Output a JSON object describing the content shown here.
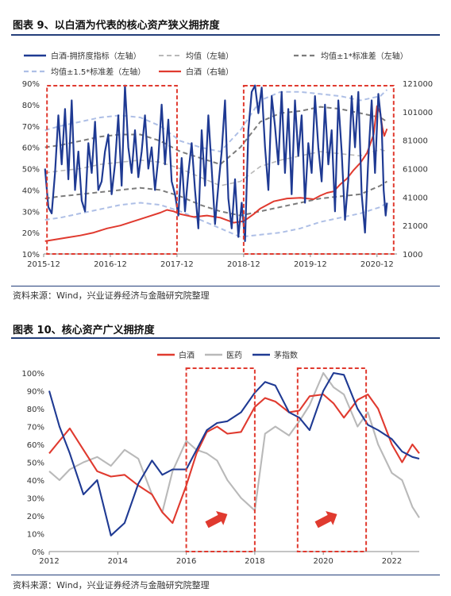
{
  "figure9": {
    "title": "图表 9、以白酒为代表的核心资产狭义拥挤度",
    "source": "资料来源：Wind，兴业证券经济与金融研究院整理"
  },
  "figure10": {
    "title": "图表 10、核心资产广义拥挤度",
    "source": "资料来源：Wind，兴业证券经济与金融研究院整理"
  },
  "colors": {
    "navy": "#1f3a93",
    "red": "#e03a2f",
    "lightBlue": "#aebfe6",
    "lightGray": "#b9b9b9",
    "darkGray": "#7c7c7c",
    "highlight": "#e03a2f",
    "arrow": "#e03a2f",
    "rule": "#243f7a"
  },
  "chart_data": [
    {
      "type": "line",
      "legend": [
        "白酒-拥挤度指标（左轴）",
        "均值（左轴）",
        "均值±1*标准差（左轴）",
        "均值±1.5*标准差（左轴）",
        "白酒（右轴）"
      ],
      "legend_position": "top",
      "x_ticks": [
        "2015-12",
        "2016-12",
        "2017-12",
        "2018-12",
        "2019-12",
        "2020-12"
      ],
      "x_range": [
        2015.95,
        2021.25
      ],
      "y_left": {
        "ticks": [
          "10%",
          "20%",
          "30%",
          "40%",
          "50%",
          "60%",
          "70%",
          "80%",
          "90%"
        ],
        "range": [
          10,
          90
        ]
      },
      "y_right": {
        "ticks": [
          "1000",
          "21000",
          "41000",
          "61000",
          "81000",
          "101000",
          "121000"
        ],
        "range": [
          1000,
          121000
        ]
      },
      "highlight_ranges": [
        [
          2016.0,
          2017.95
        ],
        [
          2018.95,
          2021.2
        ]
      ],
      "series": [
        {
          "name": "白酒-拥挤度指标（左轴）",
          "axis": "left",
          "style": "solid-navy",
          "x": [
            2015.97,
            2016.02,
            2016.07,
            2016.12,
            2016.17,
            2016.22,
            2016.27,
            2016.32,
            2016.37,
            2016.42,
            2016.47,
            2016.52,
            2016.57,
            2016.62,
            2016.67,
            2016.72,
            2016.77,
            2016.82,
            2016.87,
            2016.92,
            2016.97,
            2017.02,
            2017.07,
            2017.12,
            2017.17,
            2017.22,
            2017.27,
            2017.32,
            2017.37,
            2017.42,
            2017.47,
            2017.52,
            2017.57,
            2017.62,
            2017.67,
            2017.72,
            2017.77,
            2017.82,
            2017.87,
            2017.92,
            2017.97,
            2018.02,
            2018.07,
            2018.12,
            2018.17,
            2018.22,
            2018.27,
            2018.32,
            2018.37,
            2018.42,
            2018.47,
            2018.52,
            2018.57,
            2018.62,
            2018.67,
            2018.72,
            2018.77,
            2018.82,
            2018.87,
            2018.92,
            2018.97,
            2019.02,
            2019.07,
            2019.12,
            2019.17,
            2019.22,
            2019.27,
            2019.32,
            2019.37,
            2019.42,
            2019.47,
            2019.52,
            2019.57,
            2019.62,
            2019.67,
            2019.72,
            2019.77,
            2019.82,
            2019.87,
            2019.92,
            2019.97,
            2020.02,
            2020.07,
            2020.12,
            2020.17,
            2020.22,
            2020.27,
            2020.32,
            2020.37,
            2020.42,
            2020.47,
            2020.52,
            2020.57,
            2020.62,
            2020.67,
            2020.72,
            2020.77,
            2020.82,
            2020.87,
            2020.92,
            2020.97,
            2021.02,
            2021.05,
            2021.08,
            2021.1
          ],
          "values": [
            50,
            32,
            29,
            48,
            75,
            52,
            78,
            45,
            82,
            40,
            58,
            35,
            30,
            62,
            48,
            72,
            40,
            44,
            58,
            66,
            38,
            52,
            75,
            42,
            89,
            60,
            48,
            68,
            46,
            58,
            75,
            50,
            60,
            40,
            55,
            80,
            52,
            73,
            44,
            38,
            28,
            55,
            30,
            48,
            62,
            40,
            22,
            68,
            42,
            75,
            50,
            24,
            42,
            58,
            82,
            36,
            22,
            45,
            18,
            34,
            16,
            68,
            86,
            89,
            76,
            88,
            60,
            40,
            84,
            70,
            52,
            86,
            48,
            78,
            38,
            82,
            56,
            75,
            34,
            62,
            48,
            84,
            60,
            44,
            80,
            52,
            68,
            30,
            82,
            58,
            26,
            45,
            84,
            60,
            86,
            38,
            20,
            55,
            82,
            48,
            85,
            70,
            40,
            28,
            34
          ]
        },
        {
          "name": "均值（左轴）",
          "axis": "left",
          "style": "dashed-light-gray",
          "x": [
            2015.97,
            2016.2,
            2016.5,
            2016.8,
            2017.1,
            2017.4,
            2017.7,
            2018.0,
            2018.3,
            2018.6,
            2018.9,
            2019.2,
            2019.5,
            2019.8,
            2020.1,
            2020.4,
            2020.7,
            2021.0,
            2021.1
          ],
          "values": [
            48,
            49,
            50,
            52,
            53,
            54,
            53,
            50,
            46,
            42,
            44,
            51,
            54,
            56,
            58,
            57,
            56,
            59,
            58
          ]
        },
        {
          "name": "均值+1*标准差（左轴）",
          "axis": "left",
          "style": "dashed-dark-gray",
          "x": [
            2015.97,
            2016.2,
            2016.5,
            2016.8,
            2017.1,
            2017.4,
            2017.7,
            2018.0,
            2018.3,
            2018.6,
            2018.9,
            2019.2,
            2019.5,
            2019.8,
            2020.1,
            2020.4,
            2020.7,
            2021.0,
            2021.1
          ],
          "values": [
            60,
            61,
            63,
            65,
            66,
            66,
            63,
            58,
            55,
            52,
            60,
            72,
            76,
            77,
            79,
            78,
            76,
            74,
            72
          ]
        },
        {
          "name": "均值-1*标准差（左轴）",
          "axis": "left",
          "style": "dashed-dark-gray",
          "x": [
            2015.97,
            2016.2,
            2016.5,
            2016.8,
            2017.1,
            2017.4,
            2017.7,
            2018.0,
            2018.3,
            2018.6,
            2018.9,
            2019.2,
            2019.5,
            2019.8,
            2020.1,
            2020.4,
            2020.7,
            2021.0,
            2021.1
          ],
          "values": [
            36,
            37,
            38,
            39,
            40,
            41,
            40,
            37,
            33,
            30,
            28,
            30,
            32,
            34,
            36,
            37,
            38,
            42,
            44
          ]
        },
        {
          "name": "均值+1.5*标准差（左轴）",
          "axis": "left",
          "style": "dashed-light-blue",
          "x": [
            2015.97,
            2016.2,
            2016.5,
            2016.8,
            2017.1,
            2017.4,
            2017.7,
            2018.0,
            2018.3,
            2018.6,
            2018.9,
            2019.2,
            2019.5,
            2019.8,
            2020.1,
            2020.4,
            2020.7,
            2021.0,
            2021.1
          ],
          "values": [
            68,
            70,
            72,
            74,
            75,
            74,
            70,
            63,
            60,
            58,
            68,
            82,
            86,
            86,
            85,
            84,
            82,
            84,
            87
          ]
        },
        {
          "name": "均值-1.5*标准差（左轴）",
          "axis": "left",
          "style": "dashed-light-blue",
          "x": [
            2015.97,
            2016.2,
            2016.5,
            2016.8,
            2017.1,
            2017.4,
            2017.7,
            2018.0,
            2018.3,
            2018.6,
            2018.9,
            2019.2,
            2019.5,
            2019.8,
            2020.1,
            2020.4,
            2020.7,
            2021.0,
            2021.1
          ],
          "values": [
            26,
            27,
            29,
            31,
            33,
            34,
            33,
            30,
            26,
            22,
            18,
            19,
            20,
            22,
            25,
            27,
            29,
            32,
            34
          ]
        },
        {
          "name": "白酒（右轴）",
          "axis": "right",
          "style": "solid-red",
          "x": [
            2015.97,
            2016.1,
            2016.3,
            2016.5,
            2016.7,
            2016.9,
            2017.1,
            2017.3,
            2017.5,
            2017.7,
            2017.8,
            2017.9,
            2018.0,
            2018.2,
            2018.4,
            2018.6,
            2018.8,
            2018.95,
            2019.1,
            2019.2,
            2019.4,
            2019.6,
            2019.8,
            2020.0,
            2020.1,
            2020.2,
            2020.3,
            2020.4,
            2020.5,
            2020.6,
            2020.7,
            2020.8,
            2020.9,
            2020.95,
            2021.0,
            2021.03,
            2021.06,
            2021.1
          ],
          "values": [
            10000,
            11000,
            12500,
            14000,
            16000,
            19000,
            21000,
            24000,
            27000,
            30000,
            32000,
            31000,
            29000,
            27000,
            28000,
            26500,
            23000,
            24000,
            29000,
            33000,
            38000,
            40000,
            40500,
            39500,
            42000,
            44000,
            45000,
            50000,
            54000,
            60000,
            65000,
            72000,
            85000,
            105000,
            100000,
            90000,
            84000,
            89000
          ]
        }
      ]
    },
    {
      "type": "line",
      "legend": [
        "白酒",
        "医药",
        "茅指数"
      ],
      "legend_position": "top",
      "x_ticks": [
        "2012",
        "2014",
        "2016",
        "2018",
        "2020",
        "2022"
      ],
      "x_range": [
        2012,
        2022.8
      ],
      "y_ticks": [
        "0%",
        "10%",
        "20%",
        "30%",
        "40%",
        "50%",
        "60%",
        "70%",
        "80%",
        "90%",
        "100%"
      ],
      "y_range": [
        0,
        100
      ],
      "highlight_ranges": [
        [
          2016.0,
          2018.0
        ],
        [
          2019.25,
          2021.25
        ]
      ],
      "arrows": [
        {
          "from": [
            2016.6,
            15
          ],
          "to": [
            2017.2,
            21
          ]
        },
        {
          "from": [
            2019.8,
            15
          ],
          "to": [
            2020.4,
            21
          ]
        }
      ],
      "series": [
        {
          "name": "白酒",
          "style": "solid-red",
          "x": [
            2012.0,
            2012.3,
            2012.6,
            2013.0,
            2013.4,
            2013.8,
            2014.2,
            2014.6,
            2015.0,
            2015.3,
            2015.6,
            2016.0,
            2016.3,
            2016.6,
            2016.9,
            2017.2,
            2017.6,
            2018.0,
            2018.3,
            2018.6,
            2019.0,
            2019.3,
            2019.6,
            2020.0,
            2020.3,
            2020.6,
            2021.0,
            2021.3,
            2021.6,
            2022.0,
            2022.3,
            2022.6,
            2022.8
          ],
          "values": [
            55,
            62,
            69,
            57,
            45,
            42,
            43,
            37,
            32,
            22,
            16,
            37,
            55,
            67,
            70,
            66,
            67,
            81,
            86,
            84,
            78,
            79,
            87,
            88,
            83,
            75,
            85,
            88,
            80,
            60,
            50,
            60,
            55
          ]
        },
        {
          "name": "医药",
          "style": "solid-gray",
          "x": [
            2012.0,
            2012.3,
            2012.6,
            2013.0,
            2013.4,
            2013.8,
            2014.2,
            2014.6,
            2015.0,
            2015.3,
            2015.6,
            2016.0,
            2016.3,
            2016.6,
            2016.9,
            2017.2,
            2017.6,
            2018.0,
            2018.3,
            2018.6,
            2019.0,
            2019.3,
            2019.6,
            2020.0,
            2020.3,
            2020.6,
            2021.0,
            2021.3,
            2021.6,
            2022.0,
            2022.3,
            2022.6,
            2022.8
          ],
          "values": [
            45,
            40,
            46,
            50,
            53,
            48,
            57,
            52,
            32,
            22,
            45,
            62,
            57,
            55,
            51,
            40,
            30,
            23,
            66,
            70,
            65,
            73,
            82,
            100,
            92,
            88,
            70,
            78,
            60,
            44,
            40,
            25,
            19
          ]
        },
        {
          "name": "茅指数",
          "style": "solid-navy",
          "x": [
            2012.0,
            2012.3,
            2012.6,
            2013.0,
            2013.4,
            2013.8,
            2014.2,
            2014.6,
            2015.0,
            2015.3,
            2015.6,
            2016.0,
            2016.3,
            2016.6,
            2016.9,
            2017.2,
            2017.6,
            2018.0,
            2018.3,
            2018.6,
            2019.0,
            2019.3,
            2019.6,
            2020.0,
            2020.3,
            2020.6,
            2021.0,
            2021.3,
            2021.6,
            2022.0,
            2022.3,
            2022.6,
            2022.8
          ],
          "values": [
            90,
            70,
            55,
            32,
            40,
            9,
            16,
            38,
            51,
            43,
            46,
            46,
            57,
            68,
            72,
            73,
            78,
            89,
            95,
            93,
            78,
            75,
            68,
            90,
            100,
            99,
            80,
            71,
            68,
            63,
            56,
            53,
            52
          ]
        }
      ]
    }
  ]
}
